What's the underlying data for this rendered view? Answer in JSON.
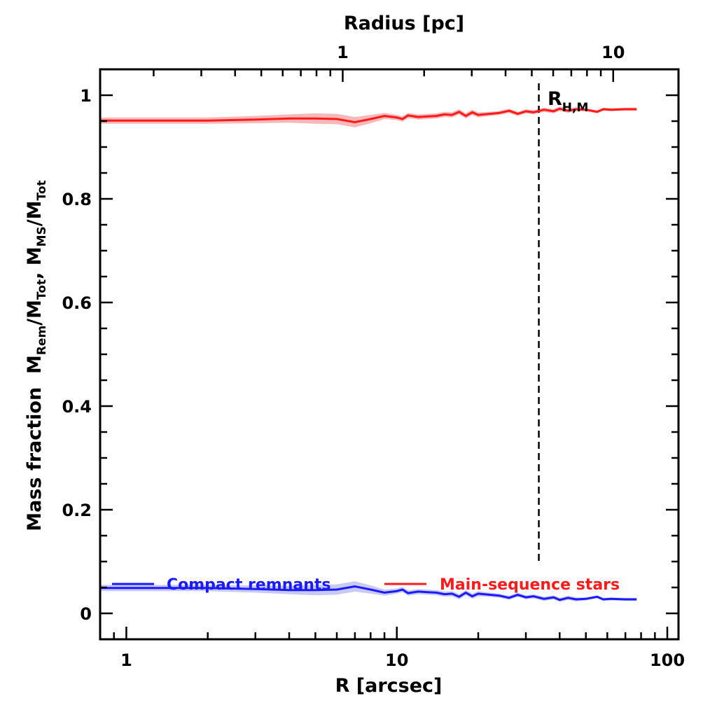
{
  "chart_data": {
    "type": "line",
    "xlabel": "R [arcsec]",
    "xlabel_top": "Radius [pc]",
    "ylabel_parts": {
      "lead": "Mass fraction",
      "m1": "M",
      "s1": "Rem",
      "d1": "/M",
      "s2": "Tot",
      "comma": ", ",
      "m2": "M",
      "s3": "MS",
      "d2": "/M",
      "s4": "Tot"
    },
    "x_scale": "log",
    "xlim": [
      0.8,
      110
    ],
    "ylim": [
      -0.05,
      1.05
    ],
    "x_ticks": [
      {
        "value": 1,
        "label": "1"
      },
      {
        "value": 10,
        "label": "10"
      },
      {
        "value": 100,
        "label": "100"
      }
    ],
    "x_ticks_top": [
      {
        "value": 1,
        "label": "1"
      },
      {
        "value": 10,
        "label": "10"
      }
    ],
    "y_ticks": [
      {
        "value": 0,
        "label": "0"
      },
      {
        "value": 0.2,
        "label": "0.2"
      },
      {
        "value": 0.4,
        "label": "0.4"
      },
      {
        "value": 0.6,
        "label": "0.6"
      },
      {
        "value": 0.8,
        "label": "0.8"
      },
      {
        "value": 1,
        "label": "1"
      }
    ],
    "annotation": {
      "text_main": "R",
      "text_sub": "H,M",
      "x": 33.5
    },
    "legend_placement": "bottom",
    "series": [
      {
        "name": "Compact remnants",
        "color": "#1a1aff",
        "band_color": "#c9c9f5",
        "x": [
          0.8,
          1.5,
          2.0,
          3.0,
          4.0,
          5.0,
          6.0,
          7.0,
          8.0,
          9.0,
          10.0,
          10.5,
          11.0,
          12.0,
          13.0,
          14.0,
          15.0,
          16.0,
          17.0,
          18.0,
          19.0,
          20.0,
          22.0,
          24.0,
          26.0,
          28.0,
          30.0,
          32.0,
          35.0,
          38.0,
          40.0,
          43.0,
          46.0,
          50.0,
          55.0,
          58.0,
          62.0,
          70.0,
          77.0
        ],
        "values": [
          0.049,
          0.049,
          0.049,
          0.047,
          0.045,
          0.045,
          0.046,
          0.052,
          0.046,
          0.04,
          0.043,
          0.046,
          0.039,
          0.042,
          0.041,
          0.04,
          0.037,
          0.038,
          0.032,
          0.04,
          0.033,
          0.038,
          0.036,
          0.034,
          0.03,
          0.036,
          0.031,
          0.033,
          0.028,
          0.031,
          0.026,
          0.03,
          0.027,
          0.028,
          0.032,
          0.027,
          0.028,
          0.027,
          0.027
        ],
        "band": [
          0.006,
          0.006,
          0.006,
          0.007,
          0.008,
          0.01,
          0.01,
          0.01,
          0.008,
          0.006,
          0.005,
          0.005,
          0.005,
          0.005,
          0.005,
          0.005,
          0.005,
          0.005,
          0.005,
          0.005,
          0.005,
          0.005,
          0.004,
          0.004,
          0.004,
          0.004,
          0.004,
          0.004,
          0.004,
          0.004,
          0.004,
          0.004,
          0.004,
          0.003,
          0.003,
          0.003,
          0.003,
          0.003,
          0.003
        ]
      },
      {
        "name": "Main-sequence stars",
        "color": "#ff1a1a",
        "band_color": "#f6b8b8",
        "x": [
          0.8,
          1.5,
          2.0,
          3.0,
          4.0,
          5.0,
          6.0,
          7.0,
          8.0,
          9.0,
          10.0,
          10.5,
          11.0,
          12.0,
          13.0,
          14.0,
          15.0,
          16.0,
          17.0,
          18.0,
          19.0,
          20.0,
          22.0,
          24.0,
          26.0,
          28.0,
          30.0,
          32.0,
          35.0,
          38.0,
          40.0,
          43.0,
          46.0,
          50.0,
          55.0,
          58.0,
          62.0,
          70.0,
          77.0
        ],
        "values": [
          0.951,
          0.951,
          0.951,
          0.953,
          0.955,
          0.955,
          0.954,
          0.948,
          0.954,
          0.96,
          0.957,
          0.954,
          0.961,
          0.958,
          0.959,
          0.96,
          0.963,
          0.962,
          0.968,
          0.96,
          0.967,
          0.962,
          0.964,
          0.966,
          0.97,
          0.964,
          0.969,
          0.967,
          0.972,
          0.969,
          0.974,
          0.97,
          0.973,
          0.972,
          0.968,
          0.973,
          0.972,
          0.973,
          0.973
        ],
        "band": [
          0.006,
          0.006,
          0.006,
          0.007,
          0.008,
          0.01,
          0.01,
          0.01,
          0.008,
          0.006,
          0.005,
          0.005,
          0.005,
          0.005,
          0.005,
          0.005,
          0.005,
          0.005,
          0.005,
          0.005,
          0.005,
          0.005,
          0.004,
          0.004,
          0.004,
          0.004,
          0.004,
          0.004,
          0.004,
          0.004,
          0.004,
          0.004,
          0.004,
          0.003,
          0.003,
          0.003,
          0.003,
          0.003,
          0.003
        ]
      }
    ]
  }
}
